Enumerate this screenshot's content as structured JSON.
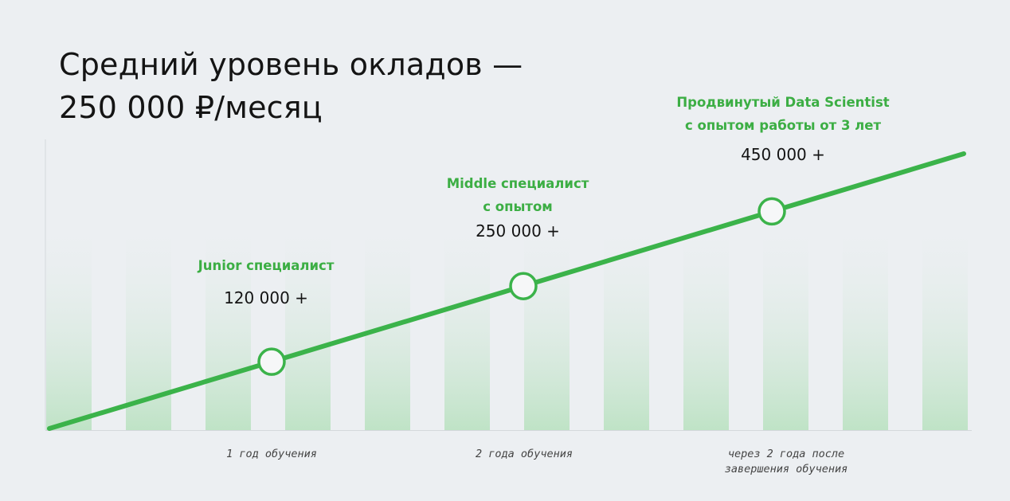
{
  "title": {
    "line1": "Средний уровень окладов —",
    "line2": "250 000 ₽/месяц"
  },
  "colors": {
    "accent": "#3bb34a",
    "label_green": "#3cae44",
    "background": "#eceff2",
    "bar_fill": "#bfe3c6"
  },
  "chart_data": {
    "type": "line",
    "x": [
      "1 год обучения",
      "2 года обучения",
      "через 2 года после завершения обучения"
    ],
    "series": [
      {
        "values": [
          120000,
          250000,
          450000
        ]
      }
    ],
    "points": [
      {
        "label": "Junior специалист",
        "value_text": "120 000 +"
      },
      {
        "label": [
          "Middle специалист",
          "с опытом"
        ],
        "value_text": "250 000 +"
      },
      {
        "label": [
          "Продвинутый Data Scientist",
          "с опытом работы от 3 лет"
        ],
        "value_text": "450 000 +"
      }
    ],
    "x_ticks": [
      [
        "1 год обучения"
      ],
      [
        "2 года обучения"
      ],
      [
        "через 2 года после",
        "завершения обучения"
      ]
    ],
    "grid": false,
    "legend": "none"
  }
}
